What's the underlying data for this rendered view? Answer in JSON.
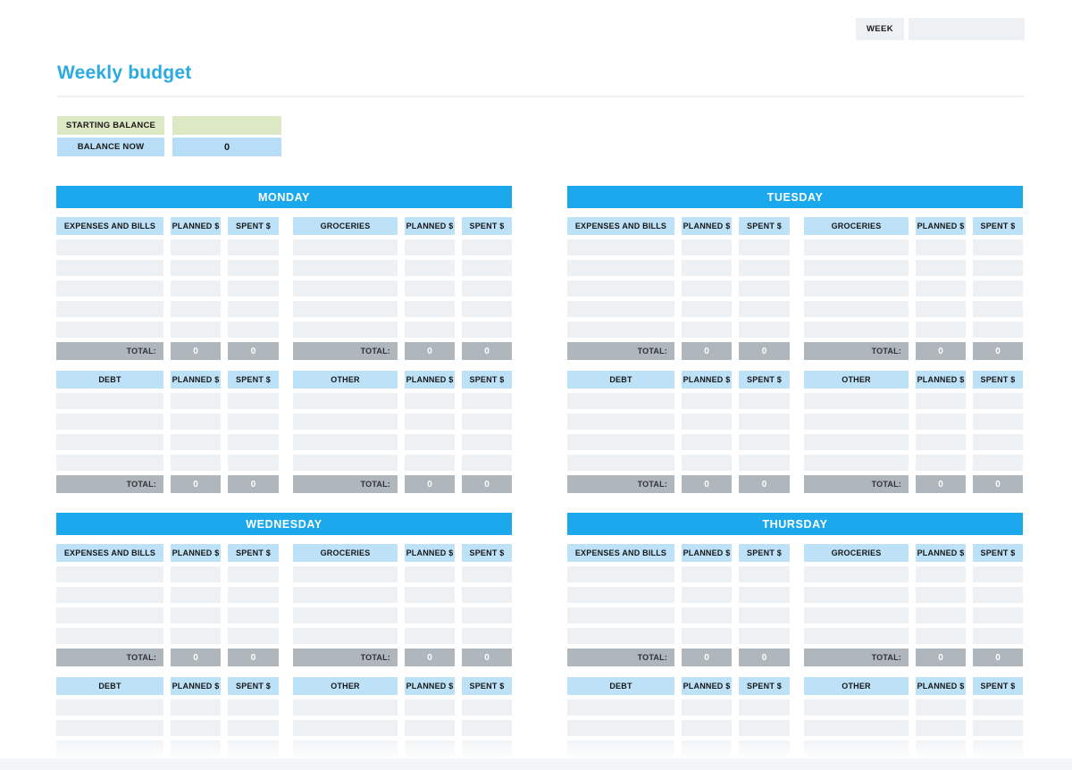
{
  "header": {
    "week_label": "WEEK",
    "week_value": "",
    "title": "Weekly budget"
  },
  "balance": {
    "starting_label": "STARTING BALANCE",
    "starting_value": "",
    "now_label": "BALANCE NOW",
    "now_value": "0"
  },
  "labels": {
    "planned": "PLANNED $",
    "spent": "SPENT $",
    "total": "TOTAL:"
  },
  "days": [
    {
      "name": "MONDAY",
      "bands": [
        {
          "left_category": "EXPENSES AND BILLS",
          "right_category": "GROCERIES",
          "rows": 5,
          "show_total": true,
          "left_total": {
            "planned": "0",
            "spent": "0"
          },
          "right_total": {
            "planned": "0",
            "spent": "0"
          }
        },
        {
          "left_category": "DEBT",
          "right_category": "OTHER",
          "rows": 4,
          "show_total": true,
          "left_total": {
            "planned": "0",
            "spent": "0"
          },
          "right_total": {
            "planned": "0",
            "spent": "0"
          }
        }
      ]
    },
    {
      "name": "TUESDAY",
      "bands": [
        {
          "left_category": "EXPENSES AND BILLS",
          "right_category": "GROCERIES",
          "rows": 5,
          "show_total": true,
          "left_total": {
            "planned": "0",
            "spent": "0"
          },
          "right_total": {
            "planned": "0",
            "spent": "0"
          }
        },
        {
          "left_category": "DEBT",
          "right_category": "OTHER",
          "rows": 4,
          "show_total": true,
          "left_total": {
            "planned": "0",
            "spent": "0"
          },
          "right_total": {
            "planned": "0",
            "spent": "0"
          }
        }
      ]
    },
    {
      "name": "WEDNESDAY",
      "bands": [
        {
          "left_category": "EXPENSES AND BILLS",
          "right_category": "GROCERIES",
          "rows": 4,
          "show_total": true,
          "left_total": {
            "planned": "0",
            "spent": "0"
          },
          "right_total": {
            "planned": "0",
            "spent": "0"
          }
        },
        {
          "left_category": "DEBT",
          "right_category": "OTHER",
          "rows": 3,
          "show_total": false
        }
      ]
    },
    {
      "name": "THURSDAY",
      "bands": [
        {
          "left_category": "EXPENSES AND BILLS",
          "right_category": "GROCERIES",
          "rows": 4,
          "show_total": true,
          "left_total": {
            "planned": "0",
            "spent": "0"
          },
          "right_total": {
            "planned": "0",
            "spent": "0"
          }
        },
        {
          "left_category": "DEBT",
          "right_category": "OTHER",
          "rows": 3,
          "show_total": false
        }
      ]
    }
  ],
  "colors": {
    "title_blue": "#29ABE2",
    "day_bar": "#1BA8EC",
    "header_cell": "#BDE1F7",
    "data_cell": "#EDF1F4",
    "total_cell": "#AFB6BC",
    "green": "#DDE8C4",
    "balance_blue": "#B7DEF6",
    "week_box": "#EEF1F4",
    "divider": "#EEF0F1",
    "bottom_strip": "#F3F5F7"
  }
}
